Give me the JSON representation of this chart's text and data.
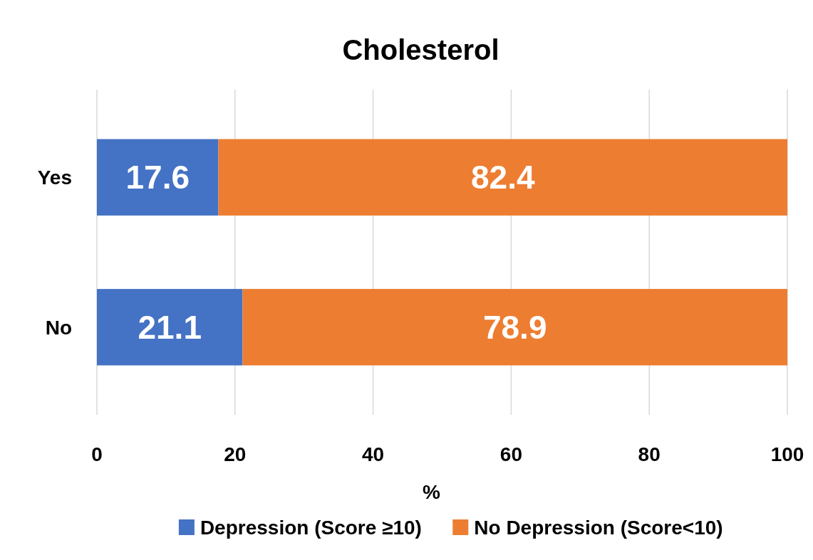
{
  "chart_data": {
    "type": "bar",
    "title": "Cholesterol",
    "xlabel": "%",
    "orientation": "horizontal",
    "stacked": true,
    "categories": [
      "Yes",
      "No"
    ],
    "series": [
      {
        "name": "Depression (Score ≥10)",
        "color": "#4472c4",
        "values": [
          17.6,
          21.1
        ]
      },
      {
        "name": "No Depression (Score<10)",
        "color": "#ed7d31",
        "values": [
          82.4,
          78.9
        ]
      }
    ],
    "xlim": [
      0,
      100
    ],
    "xticks": [
      0,
      20,
      40,
      60,
      80,
      100
    ],
    "grid": "x",
    "legend": "bottom",
    "data_labels": true
  }
}
